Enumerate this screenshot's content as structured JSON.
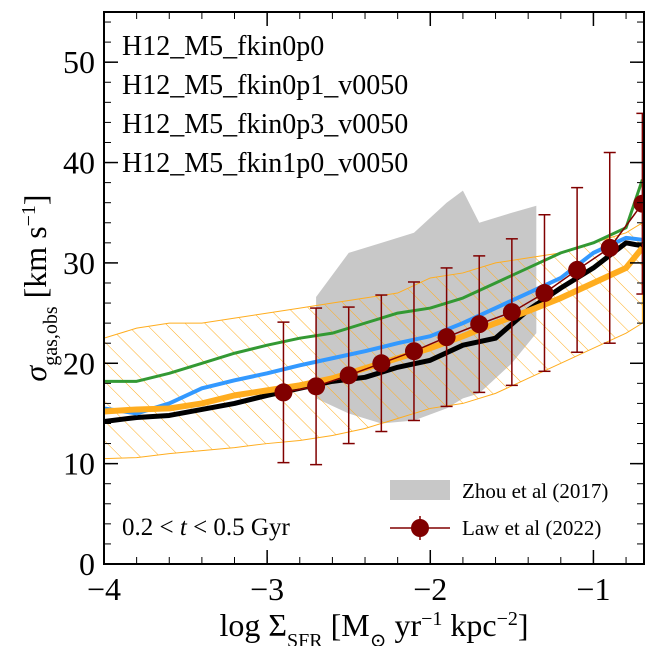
{
  "chart_data": {
    "type": "line",
    "xlim": [
      -4,
      -0.69
    ],
    "ylim": [
      0,
      55
    ],
    "xticks": [
      {
        "value": -4,
        "label": "−4"
      },
      {
        "value": -3,
        "label": "−3"
      },
      {
        "value": -2,
        "label": "−2"
      },
      {
        "value": -1,
        "label": "−1"
      }
    ],
    "yticks": [
      0,
      10,
      20,
      30,
      40,
      50
    ],
    "minor_tick_step": {
      "x": 0.2,
      "y": 2
    },
    "x_label_parts": [
      {
        "text": "log Σ"
      },
      {
        "text": "SFR",
        "sub": true
      },
      {
        "text": " [M"
      },
      {
        "text": "⊙",
        "sub": true
      },
      {
        "text": " yr"
      },
      {
        "text": "−1",
        "sup": true
      },
      {
        "text": " kpc"
      },
      {
        "text": "−2",
        "sup": true
      },
      {
        "text": "]"
      }
    ],
    "y_label_parts": [
      {
        "text": "σ",
        "italic": true
      },
      {
        "text": "gas,obs",
        "sub": true
      },
      {
        "text": " [km s"
      },
      {
        "text": "−1",
        "sup": true
      },
      {
        "text": "]"
      }
    ],
    "annotation": {
      "before": "0.2 < ",
      "var": "t",
      "after": " < 0.5 Gyr"
    },
    "x": [
      -4,
      -3.8,
      -3.6,
      -3.4,
      -3.2,
      -3.0,
      -2.8,
      -2.6,
      -2.4,
      -2.2,
      -2.0,
      -1.8,
      -1.6,
      -1.4,
      -1.2,
      -1.0,
      -0.8,
      -0.7
    ],
    "series": [
      {
        "name": "H12_M5_fkin0p0",
        "color": "#000000",
        "line_width": 5,
        "values": [
          14.2,
          14.6,
          14.8,
          15.4,
          16.0,
          16.8,
          17.5,
          18.2,
          18.6,
          19.6,
          20.3,
          21.8,
          22.5,
          25.3,
          27.5,
          29.5,
          32.0,
          31.7
        ]
      },
      {
        "name": "H12_M5_fkin0p1_v0050",
        "color": "#ffad1f",
        "line_width": 6,
        "values": [
          15.2,
          15.4,
          15.5,
          16.0,
          16.8,
          17.3,
          17.8,
          18.5,
          19.5,
          20.5,
          21.5,
          22.7,
          24.0,
          25.2,
          26.5,
          28.0,
          29.5,
          31.5
        ],
        "band_low": [
          10.5,
          10.6,
          11.0,
          11.3,
          11.6,
          12.0,
          12.3,
          12.8,
          13.5,
          14.5,
          15.5,
          16.0,
          17.0,
          18.5,
          20.0,
          21.5,
          23.0,
          24.0
        ],
        "band_high": [
          22.5,
          23.5,
          24.0,
          24.0,
          24.5,
          25.0,
          25.5,
          26.0,
          26.5,
          27.0,
          28.5,
          29.0,
          30.0,
          30.5,
          31.0,
          32.0,
          33.0,
          34.0
        ]
      },
      {
        "name": "H12_M5_fkin0p3_v0050",
        "color": "#3399ff",
        "line_width": 4,
        "values": [
          15.5,
          15.0,
          16.0,
          17.5,
          18.3,
          19.0,
          19.8,
          20.5,
          21.2,
          22.0,
          22.7,
          24.0,
          25.5,
          27.0,
          28.5,
          31.0,
          32.5,
          32.3
        ]
      },
      {
        "name": "H12_M5_fkin1p0_v0050",
        "color": "#339933",
        "line_width": 3,
        "values": [
          18.2,
          18.2,
          19.0,
          20.0,
          21.0,
          21.8,
          22.5,
          23.0,
          24.0,
          25.0,
          25.5,
          26.5,
          28.0,
          29.5,
          31.0,
          32.0,
          33.5,
          38.3
        ]
      }
    ],
    "shaded_region": {
      "name": "Zhou et al (2017)",
      "color": "#c8c8c8",
      "x": [
        -2.7,
        -2.5,
        -2.3,
        -2.1,
        -1.9,
        -1.8,
        -1.7,
        -1.5,
        -1.35
      ],
      "low": [
        16.5,
        15.0,
        14.0,
        14.3,
        15.5,
        16.5,
        17.0,
        20.0,
        23.0
      ],
      "high": [
        26.6,
        31.0,
        32.0,
        33.0,
        36.0,
        37.2,
        34.0,
        35.0,
        35.7
      ]
    },
    "points": {
      "name": "Law et al (2022)",
      "color": "#800000",
      "x": [
        -2.9,
        -2.7,
        -2.5,
        -2.3,
        -2.1,
        -1.9,
        -1.7,
        -1.5,
        -1.3,
        -1.1,
        -0.9,
        -0.7
      ],
      "values": [
        17.1,
        17.7,
        18.8,
        20.0,
        21.2,
        22.6,
        23.9,
        25.1,
        27.0,
        29.3,
        31.5,
        35.9
      ],
      "errors": [
        7.0,
        7.8,
        6.8,
        6.8,
        6.9,
        6.9,
        6.8,
        7.3,
        7.8,
        8.2,
        9.5,
        9.0
      ]
    }
  }
}
